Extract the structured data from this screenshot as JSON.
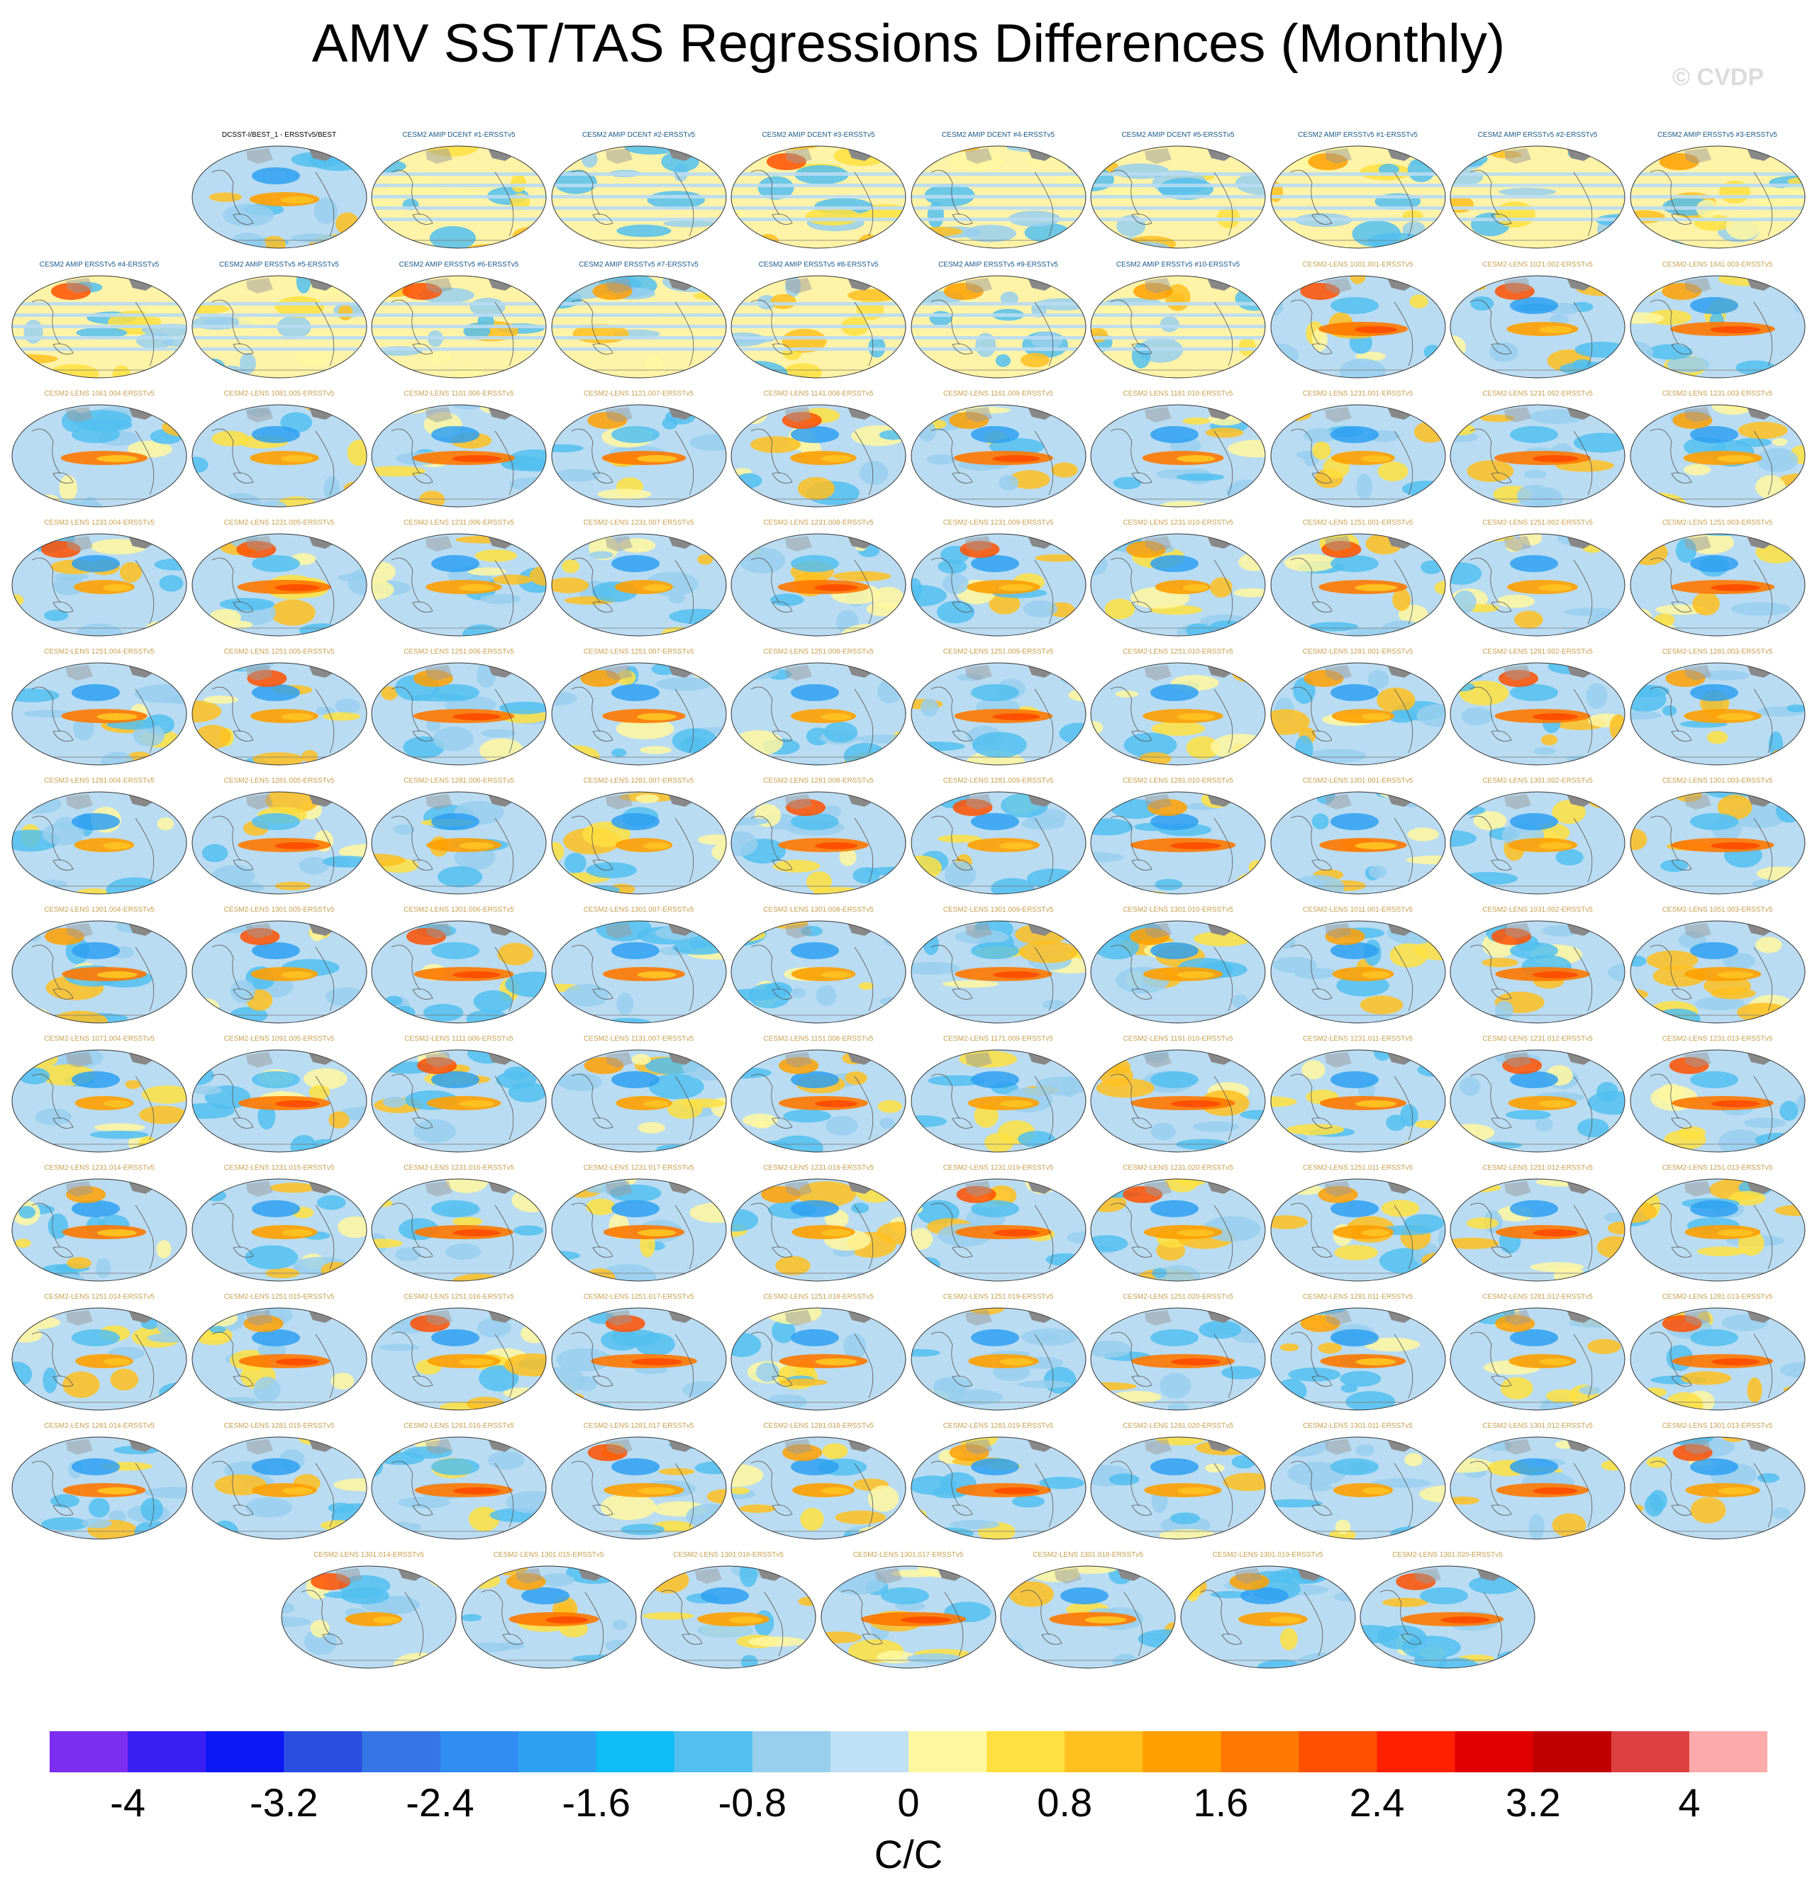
{
  "title": "AMV SST/TAS Regressions Differences (Monthly)",
  "copyright": "© CVDP",
  "colors": {
    "obs_title": "#000000",
    "amip_title": "#1a5a8a",
    "lens_title": "#c8a050",
    "land": "#888888"
  },
  "chart_data": {
    "type": "heatmap",
    "projection": "Robinson (global maps)",
    "units": "C/C",
    "color_levels": [
      -4,
      -3.6,
      -3.2,
      -2.8,
      -2.4,
      -2,
      -1.6,
      -1.2,
      -0.8,
      -0.4,
      0,
      0.4,
      0.8,
      1.2,
      1.6,
      2,
      2.4,
      2.8,
      3.2,
      3.6,
      4
    ],
    "colorbar_labels": [
      "-4",
      "-3.2",
      "-2.4",
      "-1.6",
      "-0.8",
      "0",
      "0.8",
      "1.6",
      "2.4",
      "3.2",
      "4"
    ],
    "colorbar_colors": [
      "#7b2df0",
      "#3a1ff5",
      "#0b17f5",
      "#2a4fe0",
      "#3476e6",
      "#2f8cf0",
      "#2ea0f2",
      "#10bdf6",
      "#52bff0",
      "#98cfee",
      "#bfe0f5",
      "#fff7a0",
      "#ffe040",
      "#ffc020",
      "#ffa000",
      "#ff7800",
      "#ff5000",
      "#ff2000",
      "#e00000",
      "#c00000",
      "#dd4040",
      "#ffaaaa"
    ],
    "panels": [
      {
        "label": "DCSST-I/BEST_1 - ERSSTv5/BEST",
        "kind": "obs"
      },
      {
        "label": "CESM2 AMIP DCENT #1-ERSSTv5",
        "kind": "amip"
      },
      {
        "label": "CESM2 AMIP DCENT #2-ERSSTv5",
        "kind": "amip"
      },
      {
        "label": "CESM2 AMIP DCENT #3-ERSSTv5",
        "kind": "amip"
      },
      {
        "label": "CESM2 AMIP DCENT #4-ERSSTv5",
        "kind": "amip"
      },
      {
        "label": "CESM2 AMIP DCENT #5-ERSSTv5",
        "kind": "amip"
      },
      {
        "label": "CESM2 AMIP ERSSTv5 #1-ERSSTv5",
        "kind": "amip"
      },
      {
        "label": "CESM2 AMIP ERSSTv5 #2-ERSSTv5",
        "kind": "amip"
      },
      {
        "label": "CESM2 AMIP ERSSTv5 #3-ERSSTv5",
        "kind": "amip"
      },
      {
        "label": "CESM2 AMIP ERSSTv5 #4-ERSSTv5",
        "kind": "amip"
      },
      {
        "label": "CESM2 AMIP ERSSTv5 #5-ERSSTv5",
        "kind": "amip"
      },
      {
        "label": "CESM2 AMIP ERSSTv5 #6-ERSSTv5",
        "kind": "amip"
      },
      {
        "label": "CESM2 AMIP ERSSTv5 #7-ERSSTv5",
        "kind": "amip"
      },
      {
        "label": "CESM2 AMIP ERSSTv5 #8-ERSSTv5",
        "kind": "amip"
      },
      {
        "label": "CESM2 AMIP ERSSTv5 #9-ERSSTv5",
        "kind": "amip"
      },
      {
        "label": "CESM2 AMIP ERSSTv5 #10-ERSSTv5",
        "kind": "amip"
      },
      {
        "label": "CESM2-LENS 1001.001-ERSSTv5",
        "kind": "lens"
      },
      {
        "label": "CESM2-LENS 1021.002-ERSSTv5",
        "kind": "lens"
      },
      {
        "label": "CESM2-LENS 1041.003-ERSSTv5",
        "kind": "lens"
      },
      {
        "label": "CESM2-LENS 1061.004-ERSSTv5",
        "kind": "lens"
      },
      {
        "label": "CESM2-LENS 1081.005-ERSSTv5",
        "kind": "lens"
      },
      {
        "label": "CESM2-LENS 1101.006-ERSSTv5",
        "kind": "lens"
      },
      {
        "label": "CESM2-LENS 1121.007-ERSSTv5",
        "kind": "lens"
      },
      {
        "label": "CESM2-LENS 1141.008-ERSSTv5",
        "kind": "lens"
      },
      {
        "label": "CESM2-LENS 1161.009-ERSSTv5",
        "kind": "lens"
      },
      {
        "label": "CESM2-LENS 1181.010-ERSSTv5",
        "kind": "lens"
      },
      {
        "label": "CESM2-LENS 1231.001-ERSSTv5",
        "kind": "lens"
      },
      {
        "label": "CESM2-LENS 1231.002-ERSSTv5",
        "kind": "lens"
      },
      {
        "label": "CESM2-LENS 1231.003-ERSSTv5",
        "kind": "lens"
      },
      {
        "label": "CESM2-LENS 1231.004-ERSSTv5",
        "kind": "lens"
      },
      {
        "label": "CESM2-LENS 1231.005-ERSSTv5",
        "kind": "lens"
      },
      {
        "label": "CESM2-LENS 1231.006-ERSSTv5",
        "kind": "lens"
      },
      {
        "label": "CESM2-LENS 1231.007-ERSSTv5",
        "kind": "lens"
      },
      {
        "label": "CESM2-LENS 1231.008-ERSSTv5",
        "kind": "lens"
      },
      {
        "label": "CESM2-LENS 1231.009-ERSSTv5",
        "kind": "lens"
      },
      {
        "label": "CESM2-LENS 1231.010-ERSSTv5",
        "kind": "lens"
      },
      {
        "label": "CESM2-LENS 1251.001-ERSSTv5",
        "kind": "lens"
      },
      {
        "label": "CESM2-LENS 1251.002-ERSSTv5",
        "kind": "lens"
      },
      {
        "label": "CESM2-LENS 1251.003-ERSSTv5",
        "kind": "lens"
      },
      {
        "label": "CESM2-LENS 1251.004-ERSSTv5",
        "kind": "lens"
      },
      {
        "label": "CESM2-LENS 1251.005-ERSSTv5",
        "kind": "lens"
      },
      {
        "label": "CESM2-LENS 1251.006-ERSSTv5",
        "kind": "lens"
      },
      {
        "label": "CESM2-LENS 1251.007-ERSSTv5",
        "kind": "lens"
      },
      {
        "label": "CESM2-LENS 1251.008-ERSSTv5",
        "kind": "lens"
      },
      {
        "label": "CESM2-LENS 1251.009-ERSSTv5",
        "kind": "lens"
      },
      {
        "label": "CESM2-LENS 1251.010-ERSSTv5",
        "kind": "lens"
      },
      {
        "label": "CESM2-LENS 1281.001-ERSSTv5",
        "kind": "lens"
      },
      {
        "label": "CESM2-LENS 1281.002-ERSSTv5",
        "kind": "lens"
      },
      {
        "label": "CESM2-LENS 1281.003-ERSSTv5",
        "kind": "lens"
      },
      {
        "label": "CESM2-LENS 1281.004-ERSSTv5",
        "kind": "lens"
      },
      {
        "label": "CESM2-LENS 1281.005-ERSSTv5",
        "kind": "lens"
      },
      {
        "label": "CESM2-LENS 1281.006-ERSSTv5",
        "kind": "lens"
      },
      {
        "label": "CESM2-LENS 1281.007-ERSSTv5",
        "kind": "lens"
      },
      {
        "label": "CESM2-LENS 1281.008-ERSSTv5",
        "kind": "lens"
      },
      {
        "label": "CESM2-LENS 1281.009-ERSSTv5",
        "kind": "lens"
      },
      {
        "label": "CESM2-LENS 1281.010-ERSSTv5",
        "kind": "lens"
      },
      {
        "label": "CESM2-LENS 1301.001-ERSSTv5",
        "kind": "lens"
      },
      {
        "label": "CESM2-LENS 1301.002-ERSSTv5",
        "kind": "lens"
      },
      {
        "label": "CESM2-LENS 1301.003-ERSSTv5",
        "kind": "lens"
      },
      {
        "label": "CESM2-LENS 1301.004-ERSSTv5",
        "kind": "lens"
      },
      {
        "label": "CESM2-LENS 1301.005-ERSSTv5",
        "kind": "lens"
      },
      {
        "label": "CESM2-LENS 1301.006-ERSSTv5",
        "kind": "lens"
      },
      {
        "label": "CESM2-LENS 1301.007-ERSSTv5",
        "kind": "lens"
      },
      {
        "label": "CESM2-LENS 1301.008-ERSSTv5",
        "kind": "lens"
      },
      {
        "label": "CESM2-LENS 1301.009-ERSSTv5",
        "kind": "lens"
      },
      {
        "label": "CESM2-LENS 1301.010-ERSSTv5",
        "kind": "lens"
      },
      {
        "label": "CESM2-LENS 1011.001-ERSSTv5",
        "kind": "lens"
      },
      {
        "label": "CESM2-LENS 1031.002-ERSSTv5",
        "kind": "lens"
      },
      {
        "label": "CESM2-LENS 1051.003-ERSSTv5",
        "kind": "lens"
      },
      {
        "label": "CESM2-LENS 1071.004-ERSSTv5",
        "kind": "lens"
      },
      {
        "label": "CESM2-LENS 1091.005-ERSSTv5",
        "kind": "lens"
      },
      {
        "label": "CESM2-LENS 1111.006-ERSSTv5",
        "kind": "lens"
      },
      {
        "label": "CESM2-LENS 1131.007-ERSSTv5",
        "kind": "lens"
      },
      {
        "label": "CESM2-LENS 1151.008-ERSSTv5",
        "kind": "lens"
      },
      {
        "label": "CESM2-LENS 1171.009-ERSSTv5",
        "kind": "lens"
      },
      {
        "label": "CESM2-LENS 1191.010-ERSSTv5",
        "kind": "lens"
      },
      {
        "label": "CESM2-LENS 1231.011-ERSSTv5",
        "kind": "lens"
      },
      {
        "label": "CESM2-LENS 1231.012-ERSSTv5",
        "kind": "lens"
      },
      {
        "label": "CESM2-LENS 1231.013-ERSSTv5",
        "kind": "lens"
      },
      {
        "label": "CESM2-LENS 1231.014-ERSSTv5",
        "kind": "lens"
      },
      {
        "label": "CESM2-LENS 1231.015-ERSSTv5",
        "kind": "lens"
      },
      {
        "label": "CESM2-LENS 1231.016-ERSSTv5",
        "kind": "lens"
      },
      {
        "label": "CESM2-LENS 1231.017-ERSSTv5",
        "kind": "lens"
      },
      {
        "label": "CESM2-LENS 1231.018-ERSSTv5",
        "kind": "lens"
      },
      {
        "label": "CESM2-LENS 1231.019-ERSSTv5",
        "kind": "lens"
      },
      {
        "label": "CESM2-LENS 1231.020-ERSSTv5",
        "kind": "lens"
      },
      {
        "label": "CESM2-LENS 1251.011-ERSSTv5",
        "kind": "lens"
      },
      {
        "label": "CESM2-LENS 1251.012-ERSSTv5",
        "kind": "lens"
      },
      {
        "label": "CESM2-LENS 1251.013-ERSSTv5",
        "kind": "lens"
      },
      {
        "label": "CESM2-LENS 1251.014-ERSSTv5",
        "kind": "lens"
      },
      {
        "label": "CESM2-LENS 1251.015-ERSSTv5",
        "kind": "lens"
      },
      {
        "label": "CESM2-LENS 1251.016-ERSSTv5",
        "kind": "lens"
      },
      {
        "label": "CESM2-LENS 1251.017-ERSSTv5",
        "kind": "lens"
      },
      {
        "label": "CESM2-LENS 1251.018-ERSSTv5",
        "kind": "lens"
      },
      {
        "label": "CESM2-LENS 1251.019-ERSSTv5",
        "kind": "lens"
      },
      {
        "label": "CESM2-LENS 1251.020-ERSSTv5",
        "kind": "lens"
      },
      {
        "label": "CESM2-LENS 1281.011-ERSSTv5",
        "kind": "lens"
      },
      {
        "label": "CESM2-LENS 1281.012-ERSSTv5",
        "kind": "lens"
      },
      {
        "label": "CESM2-LENS 1281.013-ERSSTv5",
        "kind": "lens"
      },
      {
        "label": "CESM2-LENS 1281.014-ERSSTv5",
        "kind": "lens"
      },
      {
        "label": "CESM2-LENS 1281.015-ERSSTv5",
        "kind": "lens"
      },
      {
        "label": "CESM2-LENS 1281.016-ERSSTv5",
        "kind": "lens"
      },
      {
        "label": "CESM2-LENS 1281.017-ERSSTv5",
        "kind": "lens"
      },
      {
        "label": "CESM2-LENS 1281.018-ERSSTv5",
        "kind": "lens"
      },
      {
        "label": "CESM2-LENS 1281.019-ERSSTv5",
        "kind": "lens"
      },
      {
        "label": "CESM2-LENS 1281.020-ERSSTv5",
        "kind": "lens"
      },
      {
        "label": "CESM2-LENS 1301.011-ERSSTv5",
        "kind": "lens"
      },
      {
        "label": "CESM2-LENS 1301.012-ERSSTv5",
        "kind": "lens"
      },
      {
        "label": "CESM2-LENS 1301.013-ERSSTv5",
        "kind": "lens"
      },
      {
        "label": "CESM2-LENS 1301.014-ERSSTv5",
        "kind": "lens"
      },
      {
        "label": "CESM2-LENS 1301.015-ERSSTv5",
        "kind": "lens"
      },
      {
        "label": "CESM2-LENS 1301.016-ERSSTv5",
        "kind": "lens"
      },
      {
        "label": "CESM2-LENS 1301.017-ERSSTv5",
        "kind": "lens"
      },
      {
        "label": "CESM2-LENS 1301.018-ERSSTv5",
        "kind": "lens"
      },
      {
        "label": "CESM2-LENS 1301.019-ERSSTv5",
        "kind": "lens"
      },
      {
        "label": "CESM2-LENS 1301.020-ERSSTv5",
        "kind": "lens"
      }
    ]
  }
}
